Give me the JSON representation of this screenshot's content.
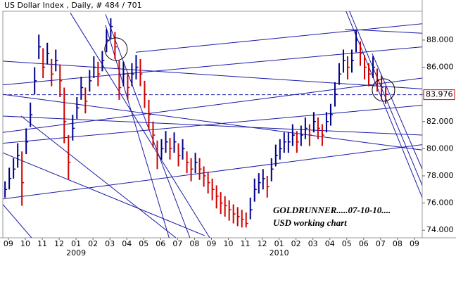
{
  "chart_data": {
    "type": "ohlc",
    "title": "US Dollar Index , Daily, # 484 / 701",
    "annotations": [
      "GOLDRUNNER.....07-10-10....",
      "USD working chart"
    ],
    "x": [
      -0.2,
      0.05,
      0.3,
      0.55,
      0.8,
      1.05,
      1.3,
      1.55,
      1.8,
      2.05,
      2.3,
      2.55,
      2.8,
      3.05,
      3.3,
      3.55,
      3.8,
      4.05,
      4.3,
      4.55,
      4.8,
      5.05,
      5.3,
      5.55,
      5.8,
      6.05,
      6.3,
      6.55,
      6.8,
      7.05,
      7.3,
      7.55,
      7.8,
      8.05,
      8.3,
      8.55,
      8.8,
      9.05,
      9.3,
      9.55,
      9.8,
      10.05,
      10.3,
      10.55,
      10.8,
      11.05,
      11.3,
      11.55,
      11.8,
      12.05,
      12.3,
      12.55,
      12.8,
      13.05,
      13.3,
      13.55,
      13.8,
      14.05,
      14.3,
      14.55,
      14.8,
      15.05,
      15.3,
      15.55,
      15.8,
      16.05,
      16.3,
      16.55,
      16.8,
      17.05,
      17.3,
      17.55,
      17.8,
      18.05,
      18.3,
      18.55,
      18.8,
      19.05,
      19.3,
      19.55,
      19.8,
      20.05,
      20.3,
      20.55,
      20.8,
      21.05,
      21.3,
      21.55,
      21.8,
      22.05,
      22.3
    ],
    "high": [
      77.6,
      78.6,
      79.3,
      80.4,
      79.8,
      81.5,
      83.4,
      86.0,
      88.4,
      87.4,
      87.8,
      86.6,
      87.3,
      86.2,
      84.5,
      81.0,
      82.5,
      83.8,
      85.3,
      84.5,
      85.8,
      86.8,
      86.4,
      87.2,
      88.8,
      89.6,
      88.6,
      86.5,
      86.4,
      85.6,
      86.3,
      86.9,
      86.6,
      85.0,
      83.6,
      82.0,
      80.6,
      80.7,
      81.3,
      80.8,
      81.2,
      80.4,
      80.7,
      79.8,
      79.3,
      79.7,
      79.3,
      78.7,
      78.3,
      77.8,
      77.3,
      76.8,
      76.5,
      76.2,
      75.9,
      75.7,
      75.5,
      75.3,
      76.4,
      77.8,
      78.2,
      78.5,
      78.0,
      79.3,
      80.3,
      80.7,
      81.2,
      81.2,
      81.8,
      81.3,
      81.7,
      82.3,
      81.8,
      82.7,
      82.3,
      81.8,
      82.7,
      83.3,
      84.9,
      86.3,
      87.3,
      86.8,
      87.3,
      88.7,
      87.9,
      86.9,
      86.3,
      86.8,
      85.9,
      85.4,
      84.6
    ],
    "low": [
      76.4,
      77.0,
      77.8,
      78.6,
      75.8,
      79.6,
      81.6,
      84.0,
      86.6,
      85.2,
      86.2,
      84.6,
      85.7,
      83.8,
      80.4,
      77.7,
      80.6,
      82.2,
      83.6,
      82.6,
      84.2,
      85.2,
      84.6,
      85.7,
      87.1,
      88.1,
      86.6,
      83.6,
      84.6,
      83.6,
      84.6,
      85.1,
      84.6,
      83.0,
      81.4,
      80.1,
      78.5,
      79.2,
      79.7,
      79.2,
      79.7,
      78.7,
      79.2,
      78.2,
      77.6,
      78.2,
      77.7,
      77.2,
      76.7,
      76.2,
      75.6,
      75.2,
      75.0,
      74.7,
      74.5,
      74.3,
      74.2,
      74.2,
      74.8,
      76.1,
      76.7,
      77.0,
      76.4,
      77.6,
      78.7,
      79.2,
      79.7,
      79.7,
      80.2,
      79.7,
      80.2,
      80.7,
      80.2,
      81.2,
      80.7,
      80.2,
      81.2,
      81.7,
      83.1,
      84.7,
      85.6,
      85.1,
      85.6,
      87.1,
      86.1,
      85.1,
      84.6,
      85.2,
      84.2,
      83.6,
      83.3
    ],
    "close": [
      77.0,
      77.8,
      78.5,
      79.5,
      77.5,
      80.5,
      82.5,
      85.0,
      87.5,
      86.0,
      87.0,
      85.5,
      86.5,
      85.0,
      82.0,
      79.0,
      81.5,
      83.0,
      84.5,
      83.5,
      85.0,
      86.0,
      85.5,
      86.5,
      88.0,
      89.0,
      87.5,
      84.5,
      85.5,
      84.5,
      85.5,
      86.0,
      85.5,
      84.0,
      82.5,
      81.0,
      79.5,
      80.0,
      80.5,
      80.0,
      80.5,
      79.5,
      80.0,
      79.0,
      78.5,
      79.0,
      78.5,
      78.0,
      77.5,
      77.0,
      76.5,
      76.0,
      75.8,
      75.5,
      75.2,
      75.0,
      74.8,
      74.5,
      75.5,
      77.0,
      77.5,
      77.8,
      77.2,
      78.5,
      79.5,
      80.0,
      80.5,
      80.5,
      81.0,
      80.5,
      81.0,
      81.5,
      81.0,
      82.0,
      81.5,
      81.0,
      82.0,
      82.5,
      84.0,
      85.5,
      86.5,
      86.0,
      86.5,
      88.0,
      87.0,
      86.0,
      85.5,
      86.0,
      85.0,
      84.5,
      84.0
    ],
    "up_color": "#00008b",
    "down_color": "#d00000",
    "line_color": "#1a1aa8",
    "last_price": {
      "value": 83.976,
      "label": "83.976"
    },
    "xlim": [
      -0.33,
      24.46
    ],
    "xticks": [
      {
        "value": 0,
        "label": "09"
      },
      {
        "value": 1,
        "label": "10"
      },
      {
        "value": 2,
        "label": "11"
      },
      {
        "value": 3,
        "label": "12"
      },
      {
        "value": 4,
        "label": "01"
      },
      {
        "value": 5,
        "label": "02"
      },
      {
        "value": 6,
        "label": "03"
      },
      {
        "value": 7,
        "label": "04"
      },
      {
        "value": 8,
        "label": "05"
      },
      {
        "value": 9,
        "label": "06"
      },
      {
        "value": 10,
        "label": "07"
      },
      {
        "value": 11,
        "label": "08"
      },
      {
        "value": 12,
        "label": "09"
      },
      {
        "value": 13,
        "label": "10"
      },
      {
        "value": 14,
        "label": "11"
      },
      {
        "value": 15,
        "label": "12"
      },
      {
        "value": 16,
        "label": "01"
      },
      {
        "value": 17,
        "label": "02"
      },
      {
        "value": 18,
        "label": "03"
      },
      {
        "value": 19,
        "label": "04"
      },
      {
        "value": 20,
        "label": "05"
      },
      {
        "value": 21,
        "label": "06"
      },
      {
        "value": 22,
        "label": "07"
      },
      {
        "value": 23,
        "label": "08"
      },
      {
        "value": 24,
        "label": "09"
      }
    ],
    "year_labels": [
      {
        "value": 4,
        "label": "2009"
      },
      {
        "value": 16,
        "label": "2010"
      }
    ],
    "ylim": [
      73.44,
      90.12
    ],
    "yticks": [
      {
        "value": 74,
        "label": "74.000"
      },
      {
        "value": 76,
        "label": "76.000"
      },
      {
        "value": 78,
        "label": "78.000"
      },
      {
        "value": 80,
        "label": "80.000"
      },
      {
        "value": 82,
        "label": "82.000"
      },
      {
        "value": 84,
        "label": "84.000"
      },
      {
        "value": 86,
        "label": "86.000"
      },
      {
        "value": 88,
        "label": "88.000"
      }
    ],
    "trendlines": [
      [
        -0.33,
        86.45,
        24.46,
        84.4
      ],
      [
        7.53,
        87.1,
        24.46,
        89.2
      ],
      [
        19.9,
        88.8,
        24.46,
        88.5
      ],
      [
        -0.33,
        84.7,
        24.46,
        87.5
      ],
      [
        -0.33,
        81.2,
        24.46,
        85.2
      ],
      [
        -0.33,
        80.4,
        24.46,
        83.2
      ],
      [
        -0.33,
        76.3,
        24.46,
        80.3
      ],
      [
        -0.33,
        82.4,
        24.46,
        81.0
      ],
      [
        -0.33,
        84.0,
        24.46,
        79.9
      ],
      [
        -0.33,
        75.9,
        1.37,
        73.44
      ],
      [
        -0.33,
        79.7,
        11.6,
        73.6
      ],
      [
        5.74,
        89.9,
        10.73,
        73.44
      ],
      [
        5.74,
        89.1,
        9.5,
        73.44
      ],
      [
        3.66,
        90.0,
        11.9,
        73.44
      ],
      [
        0.75,
        82.4,
        9.9,
        73.44
      ],
      [
        19.9,
        90.3,
        24.46,
        76.4
      ],
      [
        20.1,
        90.3,
        24.46,
        77.3
      ],
      [
        21.5,
        87.0,
        24.46,
        78.5
      ]
    ],
    "circles": [
      [
        6.36,
        87.33
      ],
      [
        22.17,
        84.32
      ]
    ]
  }
}
